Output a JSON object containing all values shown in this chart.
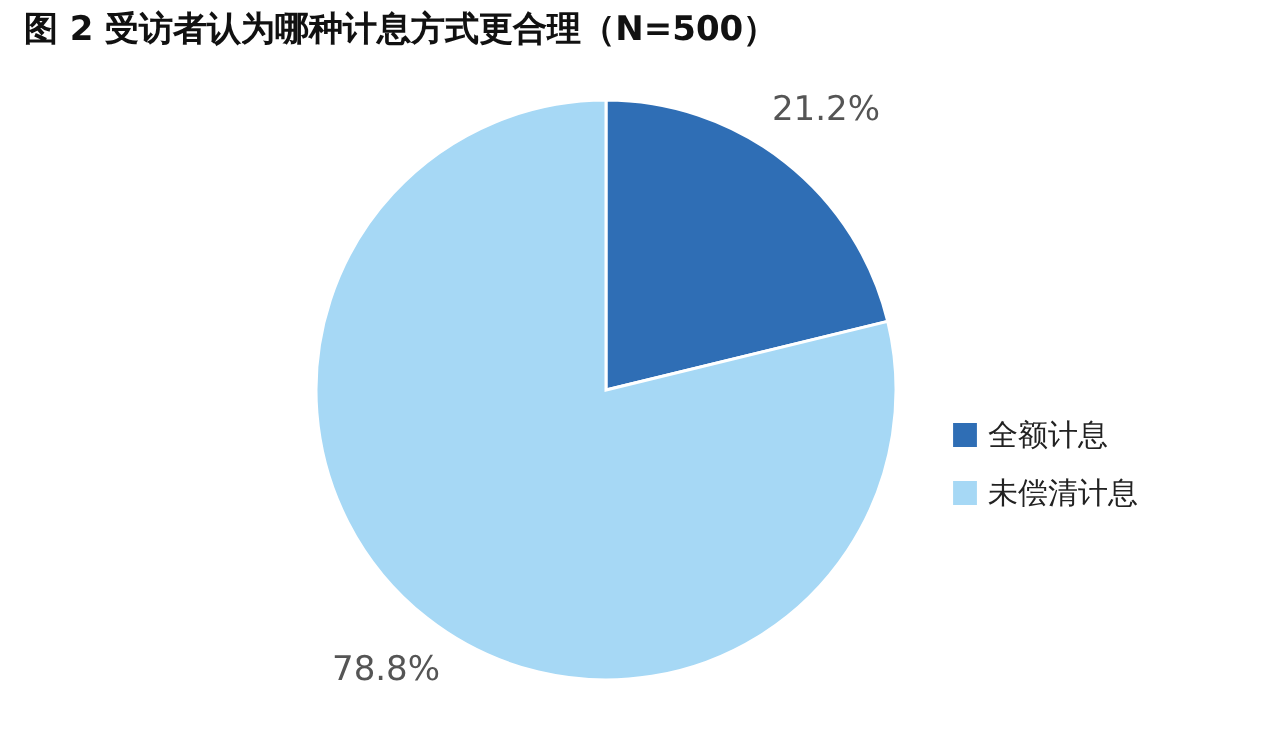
{
  "chart_data": {
    "type": "pie",
    "title": "图 2  受访者认为哪种计息方式更合理（N=500）",
    "categories": [
      "全额计息",
      "未偿清计息"
    ],
    "values": [
      21.2,
      78.8
    ],
    "colors": [
      "#2f6eb5",
      "#a6d8f5"
    ],
    "value_labels": [
      "21.2%",
      "78.8%"
    ],
    "legend": "right"
  }
}
